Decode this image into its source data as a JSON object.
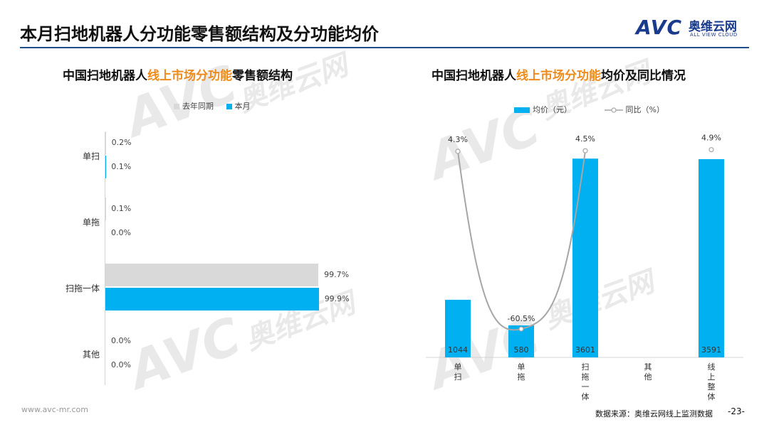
{
  "header": {
    "title": "本月扫地机器人分功能零售额结构及分功能均价",
    "logo_mark": "AVC",
    "logo_cn": "奥维云网",
    "logo_en": "ALL VIEW CLOUD"
  },
  "watermarks": {
    "mark": "AVC",
    "cn": "奥维云网",
    "en": "ALL VIEW CLOUD"
  },
  "left_panel": {
    "title_pre": "中国扫地机器人",
    "title_hl": "线上市场分功能",
    "title_post": "零售额结构"
  },
  "right_panel": {
    "title_pre": "中国扫地机器人",
    "title_hl": "线上市场分功能",
    "title_post": "均价及同比情况"
  },
  "footer": {
    "url": "www.avc-mr.com",
    "source": "数据来源：奥维云网线上监测数据",
    "page": "-23-"
  },
  "colors": {
    "gray": "#d9d9d9",
    "blue": "#00b0f0",
    "line": "#a6a6a6",
    "accent": "#ed8b1c",
    "rule": "#1f4e8c"
  },
  "chart_data": [
    {
      "type": "bar",
      "orientation": "horizontal",
      "categories": [
        "单扫",
        "单拖",
        "扫拖一体",
        "其他"
      ],
      "series": [
        {
          "name": "去年同期",
          "values": [
            0.2,
            0.1,
            99.7,
            0.0
          ],
          "labels": [
            "0.2%",
            "0.1%",
            "99.7%",
            "0.0%"
          ]
        },
        {
          "name": "本月",
          "values": [
            0.1,
            0.0,
            99.9,
            0.0
          ],
          "labels": [
            "0.1%",
            "0.0%",
            "99.9%",
            "0.0%"
          ]
        }
      ],
      "xlim": [
        0,
        100
      ],
      "legend": "top"
    },
    {
      "type": "bar",
      "categories": [
        "单扫",
        "单拖",
        "扫拖一体",
        "其他",
        "线上整体"
      ],
      "series": [
        {
          "name": "均价（元）",
          "kind": "bar",
          "values": [
            1044,
            580,
            3601,
            null,
            3591
          ],
          "labels": [
            "1044",
            "580",
            "3601",
            "",
            "3591"
          ]
        },
        {
          "name": "同比（%）",
          "kind": "line",
          "values": [
            4.3,
            -60.5,
            4.5,
            null,
            4.9
          ],
          "labels": [
            "4.3%",
            "-60.5%",
            "4.5%",
            "",
            "4.9%"
          ]
        }
      ],
      "legend": "top"
    }
  ]
}
